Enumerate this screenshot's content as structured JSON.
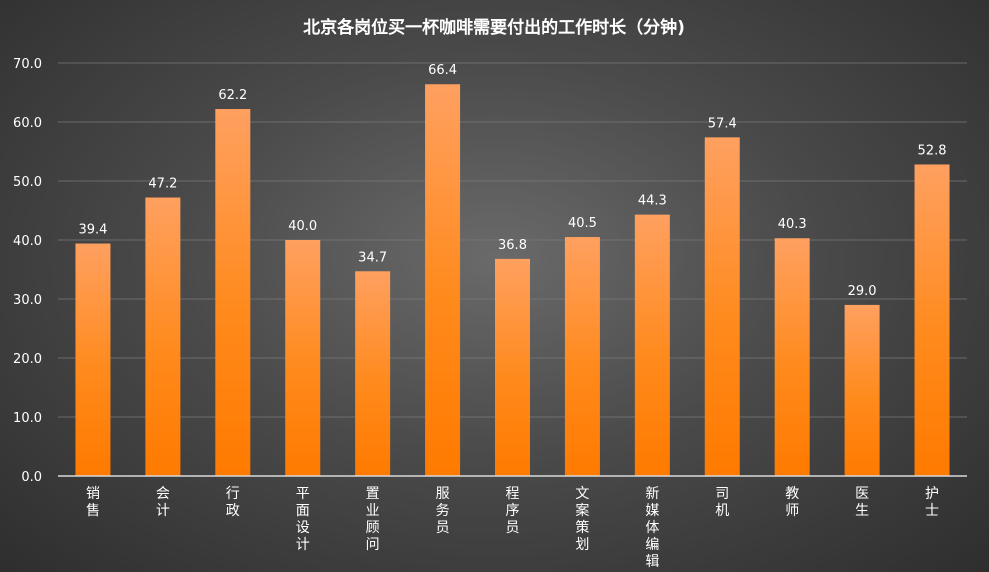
{
  "chart_data": {
    "type": "bar",
    "title": "北京各岗位买一杯咖啡需要付出的工作时长（分钟)",
    "xlabel": "",
    "ylabel": "",
    "ylim": [
      0,
      70
    ],
    "yticks": [
      "0.0",
      "10.0",
      "20.0",
      "30.0",
      "40.0",
      "50.0",
      "60.0",
      "70.0"
    ],
    "categories": [
      "销售",
      "会计",
      "行政",
      "平面设计",
      "置业顾问",
      "服务员",
      "程序员",
      "文案策划",
      "新媒体编辑",
      "司机",
      "教师",
      "医生",
      "护士"
    ],
    "values": [
      39.4,
      47.2,
      62.2,
      40.0,
      34.7,
      66.4,
      36.8,
      40.5,
      44.3,
      57.4,
      40.3,
      29.0,
      52.8
    ],
    "data_labels": [
      "39.4",
      "47.2",
      "62.2",
      "40.0",
      "34.7",
      "66.4",
      "36.8",
      "40.5",
      "44.3",
      "57.4",
      "40.3",
      "29.0",
      "52.8"
    ],
    "grid": true,
    "legend": "none",
    "colors": {
      "bar_top": "#ffa060",
      "bar_bottom": "#ff7a00",
      "text": "#ffffff",
      "grid": "#7a7a7a",
      "axis": "#d9d9d9"
    }
  }
}
